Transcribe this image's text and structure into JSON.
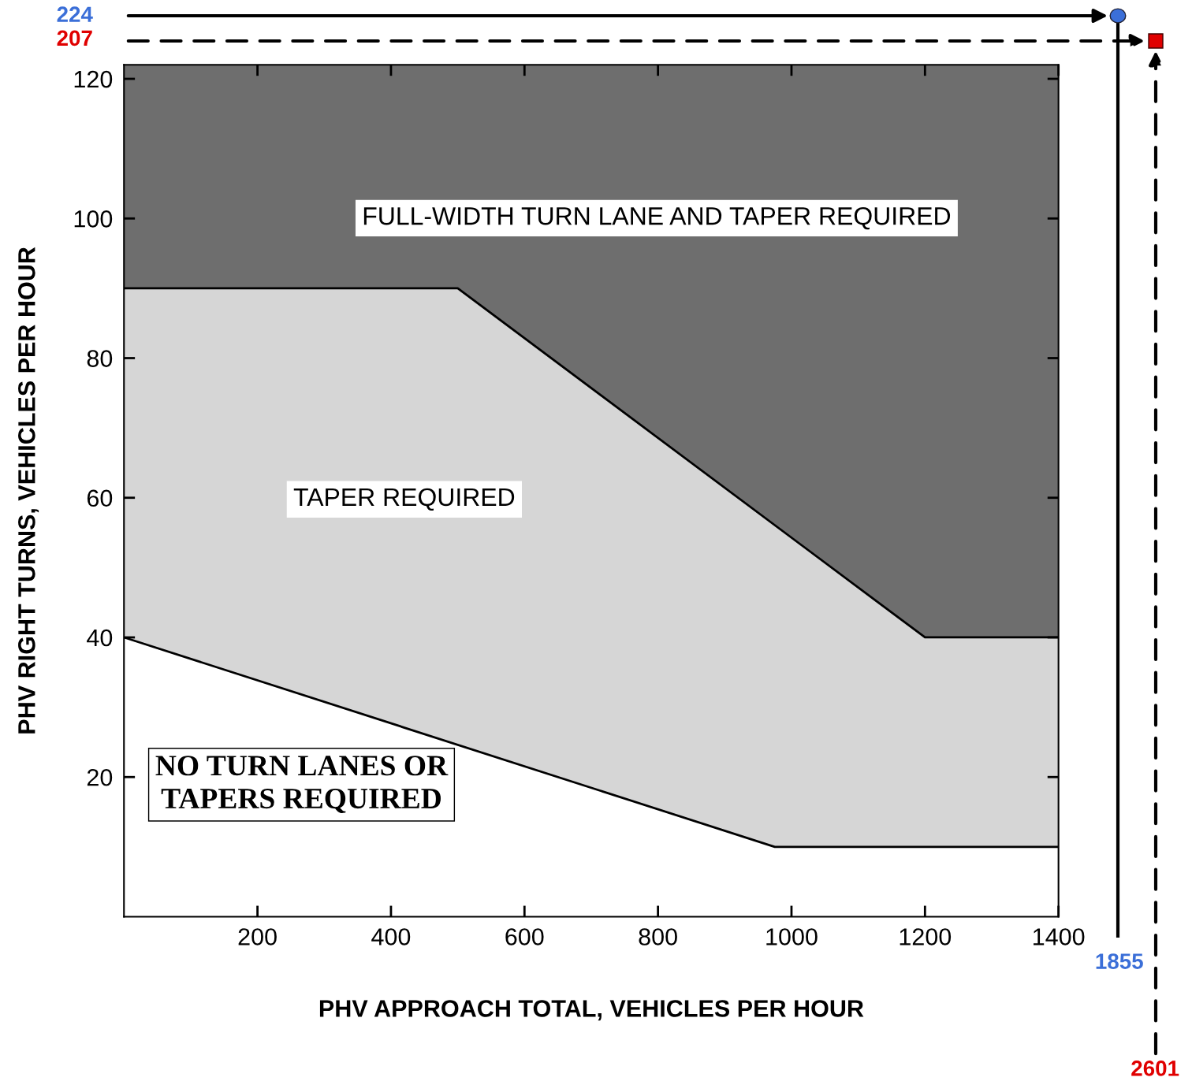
{
  "chart_data": {
    "type": "area",
    "xlabel": "PHV APPROACH TOTAL, VEHICLES PER HOUR",
    "ylabel": "PHV RIGHT TURNS, VEHICLES PER HOUR",
    "series": [
      {
        "x": [
          0,
          500,
          1200,
          1400
        ],
        "values": [
          90,
          90,
          40,
          40
        ],
        "color": "#d6d6d6"
      },
      {
        "x": [
          0,
          975,
          1400
        ],
        "values": [
          40,
          10,
          10
        ],
        "color": "#ffffff"
      }
    ],
    "xlim": [
      0,
      1400
    ],
    "ylim": [
      0,
      122
    ],
    "xticks": [
      200,
      400,
      600,
      800,
      1000,
      1200,
      1400
    ],
    "yticks": [
      20,
      40,
      60,
      80,
      100,
      120
    ],
    "grid": false,
    "legend": false,
    "annotations": [
      "FULL-WIDTH TURN LANE AND TAPER REQUIRED",
      "TAPER REQUIRED",
      "NO TURN LANES OR\nTAPERS REQUIRED",
      "224",
      "207",
      "1855",
      "2601"
    ]
  }
}
